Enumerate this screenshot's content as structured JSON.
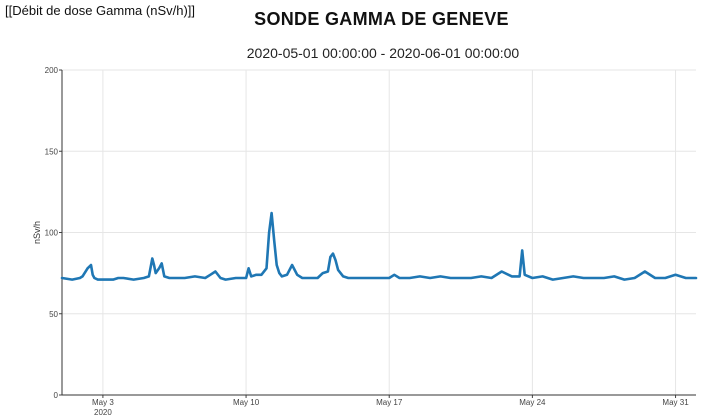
{
  "header": {
    "label": "[[Débit de dose Gamma (nSv/h)]]",
    "title": "SONDE GAMMA DE GENEVE",
    "subtitle": "2020-05-01 00:00:00 - 2020-06-01 00:00:00"
  },
  "chart_data": {
    "type": "line",
    "title": "SONDE GAMMA DE GENEVE",
    "subtitle": "2020-05-01 00:00:00 - 2020-06-01 00:00:00",
    "xlabel": "",
    "ylabel": "nSv/h",
    "ylim": [
      0,
      200
    ],
    "xlim": [
      "2020-05-01T00:00",
      "2020-06-01T00:00"
    ],
    "y_ticks": [
      0,
      50,
      100,
      150,
      200
    ],
    "x_ticks": [
      {
        "date": "2020-05-03",
        "label": "May 3",
        "sublabel": "2020"
      },
      {
        "date": "2020-05-10",
        "label": "May 10",
        "sublabel": ""
      },
      {
        "date": "2020-05-17",
        "label": "May 17",
        "sublabel": ""
      },
      {
        "date": "2020-05-24",
        "label": "May 24",
        "sublabel": ""
      },
      {
        "date": "2020-05-31",
        "label": "May 31",
        "sublabel": ""
      }
    ],
    "grid": true,
    "line_color": "#1f77b4",
    "series": [
      {
        "name": "",
        "x": [
          "2020-05-01T00:00",
          "2020-05-01T12:00",
          "2020-05-01T21:00",
          "2020-05-02T00:00",
          "2020-05-02T06:00",
          "2020-05-02T10:00",
          "2020-05-02T12:00",
          "2020-05-02T14:00",
          "2020-05-02T18:00",
          "2020-05-03T00:00",
          "2020-05-03T12:00",
          "2020-05-03T18:00",
          "2020-05-04T00:00",
          "2020-05-04T12:00",
          "2020-05-05T00:00",
          "2020-05-05T06:00",
          "2020-05-05T10:00",
          "2020-05-05T12:00",
          "2020-05-05T14:00",
          "2020-05-05T18:00",
          "2020-05-05T21:00",
          "2020-05-06T00:00",
          "2020-05-06T06:00",
          "2020-05-06T09:00",
          "2020-05-06T12:00",
          "2020-05-07T00:00",
          "2020-05-07T12:00",
          "2020-05-08T00:00",
          "2020-05-08T06:00",
          "2020-05-08T12:00",
          "2020-05-08T18:00",
          "2020-05-09T00:00",
          "2020-05-09T12:00",
          "2020-05-10T00:00",
          "2020-05-10T03:00",
          "2020-05-10T06:00",
          "2020-05-10T12:00",
          "2020-05-10T18:00",
          "2020-05-11T00:00",
          "2020-05-11T03:00",
          "2020-05-11T06:00",
          "2020-05-11T09:00",
          "2020-05-11T12:00",
          "2020-05-11T15:00",
          "2020-05-11T18:00",
          "2020-05-12T00:00",
          "2020-05-12T06:00",
          "2020-05-12T12:00",
          "2020-05-12T18:00",
          "2020-05-13T00:00",
          "2020-05-13T06:00",
          "2020-05-13T12:00",
          "2020-05-13T18:00",
          "2020-05-14T00:00",
          "2020-05-14T03:00",
          "2020-05-14T06:00",
          "2020-05-14T09:00",
          "2020-05-14T12:00",
          "2020-05-14T18:00",
          "2020-05-15T00:00",
          "2020-05-15T12:00",
          "2020-05-16T00:00",
          "2020-05-16T12:00",
          "2020-05-17T00:00",
          "2020-05-17T06:00",
          "2020-05-17T12:00",
          "2020-05-18T00:00",
          "2020-05-18T12:00",
          "2020-05-19T00:00",
          "2020-05-19T12:00",
          "2020-05-20T00:00",
          "2020-05-20T12:00",
          "2020-05-21T00:00",
          "2020-05-21T12:00",
          "2020-05-22T00:00",
          "2020-05-22T12:00",
          "2020-05-23T00:00",
          "2020-05-23T09:00",
          "2020-05-23T12:00",
          "2020-05-23T15:00",
          "2020-05-24T00:00",
          "2020-05-24T12:00",
          "2020-05-25T00:00",
          "2020-05-25T12:00",
          "2020-05-26T00:00",
          "2020-05-26T12:00",
          "2020-05-27T00:00",
          "2020-05-27T12:00",
          "2020-05-28T00:00",
          "2020-05-28T12:00",
          "2020-05-29T00:00",
          "2020-05-29T12:00",
          "2020-05-30T00:00",
          "2020-05-30T12:00",
          "2020-05-31T00:00",
          "2020-05-31T12:00",
          "2020-06-01T00:00"
        ],
        "values": [
          72,
          71,
          72,
          73,
          78,
          80,
          74,
          72,
          71,
          71,
          71,
          72,
          72,
          71,
          72,
          73,
          84,
          80,
          75,
          78,
          81,
          73,
          72,
          72,
          72,
          72,
          73,
          72,
          74,
          76,
          72,
          71,
          72,
          72,
          78,
          73,
          74,
          74,
          78,
          100,
          112,
          95,
          80,
          75,
          73,
          74,
          80,
          74,
          72,
          72,
          72,
          72,
          75,
          76,
          85,
          87,
          83,
          77,
          73,
          72,
          72,
          72,
          72,
          72,
          74,
          72,
          72,
          73,
          72,
          73,
          72,
          72,
          72,
          73,
          72,
          76,
          73,
          73,
          89,
          74,
          72,
          73,
          71,
          72,
          73,
          72,
          72,
          72,
          73,
          71,
          72,
          76,
          72,
          72,
          74,
          72,
          72
        ]
      }
    ]
  }
}
